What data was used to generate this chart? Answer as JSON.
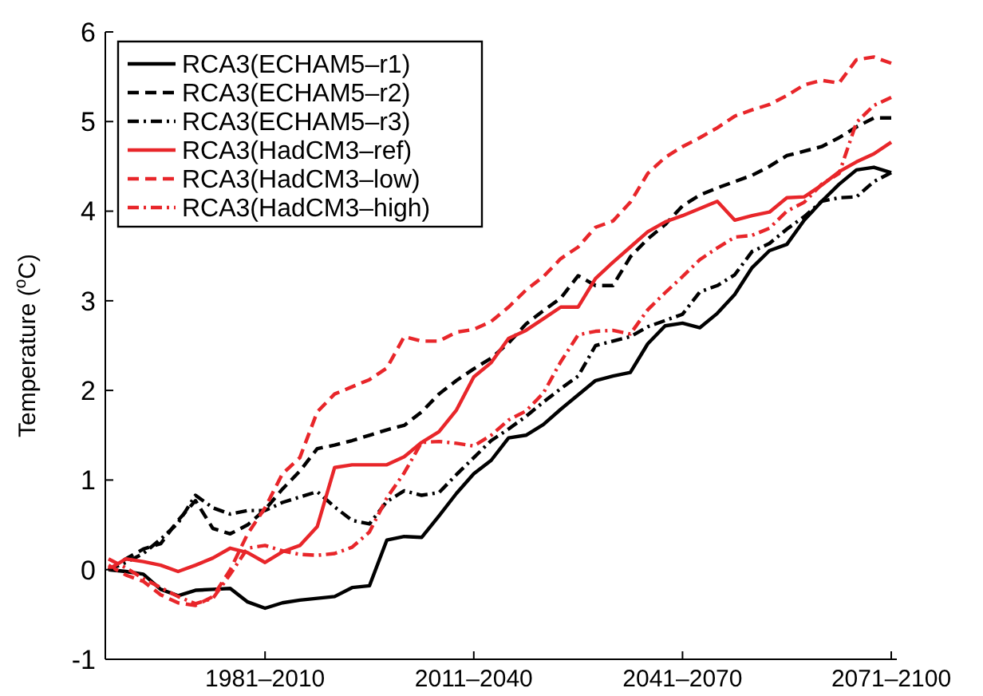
{
  "chart_data": {
    "type": "line",
    "ylabel": "Temperature ($^{o}$C)",
    "categories": [
      null,
      null,
      null,
      null,
      null,
      null,
      null,
      null,
      null,
      "1981–2010",
      null,
      null,
      null,
      null,
      null,
      null,
      null,
      null,
      null,
      null,
      null,
      "2011–2040",
      null,
      null,
      null,
      null,
      null,
      null,
      null,
      null,
      null,
      null,
      null,
      "2041–2070",
      null,
      null,
      null,
      null,
      null,
      null,
      null,
      null,
      null,
      null,
      null,
      "2071–2100"
    ],
    "ylim": [
      -1,
      6
    ],
    "yticks": [
      -1,
      0,
      1,
      2,
      3,
      4,
      5,
      6
    ],
    "legend": "top left",
    "series": [
      {
        "name": "RCA3(ECHAM5–r1)",
        "color": "#000000",
        "line_style": "solid",
        "values": [
          0,
          -0.02,
          -0.05,
          -0.22,
          -0.29,
          -0.23,
          -0.22,
          -0.21,
          -0.36,
          -0.43,
          -0.37,
          -0.34,
          -0.32,
          -0.3,
          -0.2,
          -0.18,
          0.33,
          0.37,
          0.36,
          0.6,
          0.85,
          1.07,
          1.22,
          1.47,
          1.5,
          1.62,
          1.79,
          1.95,
          2.11,
          2.16,
          2.2,
          2.52,
          2.72,
          2.75,
          2.7,
          2.86,
          3.07,
          3.37,
          3.56,
          3.63,
          3.9,
          4.11,
          4.3,
          4.46,
          4.49,
          4.43
        ]
      },
      {
        "name": "RCA3(ECHAM5–r2)",
        "color": "#000000",
        "line_style": "dashed",
        "values": [
          0,
          0.12,
          0.23,
          0.29,
          0.55,
          0.77,
          0.46,
          0.4,
          0.5,
          0.67,
          0.9,
          1.1,
          1.35,
          1.39,
          1.44,
          1.5,
          1.56,
          1.61,
          1.76,
          1.96,
          2.11,
          2.24,
          2.36,
          2.53,
          2.74,
          2.89,
          3.03,
          3.28,
          3.17,
          3.17,
          3.49,
          3.69,
          3.85,
          4.06,
          4.18,
          4.26,
          4.33,
          4.4,
          4.5,
          4.62,
          4.67,
          4.72,
          4.82,
          4.94,
          5.04,
          5.04
        ]
      },
      {
        "name": "RCA3(ECHAM5–r3)",
        "color": "#000000",
        "line_style": "dashdot",
        "values": [
          0,
          0.08,
          0.18,
          0.34,
          0.52,
          0.83,
          0.69,
          0.62,
          0.66,
          0.66,
          0.75,
          0.81,
          0.87,
          0.7,
          0.55,
          0.51,
          0.76,
          0.88,
          0.83,
          0.86,
          1.06,
          1.25,
          1.44,
          1.57,
          1.71,
          1.87,
          2.02,
          2.16,
          2.5,
          2.55,
          2.6,
          2.71,
          2.78,
          2.85,
          3.1,
          3.17,
          3.29,
          3.55,
          3.64,
          3.8,
          3.94,
          4.11,
          4.15,
          4.16,
          4.33,
          4.43
        ]
      },
      {
        "name": "RCA3(HadCM3–ref)",
        "color": "#e8262a",
        "line_style": "solid",
        "values": [
          0,
          0.12,
          0.09,
          0.05,
          -0.02,
          0.05,
          0.13,
          0.24,
          0.19,
          0.08,
          0.2,
          0.27,
          0.48,
          1.14,
          1.17,
          1.17,
          1.17,
          1.26,
          1.42,
          1.54,
          1.78,
          2.15,
          2.31,
          2.58,
          2.67,
          2.8,
          2.93,
          2.93,
          3.25,
          3.43,
          3.6,
          3.77,
          3.88,
          3.95,
          4.03,
          4.11,
          3.9,
          3.95,
          3.99,
          4.15,
          4.16,
          4.29,
          4.44,
          4.55,
          4.64,
          4.77
        ]
      },
      {
        "name": "RCA3(HadCM3–low)",
        "color": "#e8262a",
        "line_style": "dashed",
        "values": [
          0.05,
          -0.06,
          -0.13,
          -0.28,
          -0.37,
          -0.4,
          -0.3,
          0,
          0.4,
          0.69,
          1.07,
          1.25,
          1.76,
          1.96,
          2.04,
          2.12,
          2.25,
          2.6,
          2.55,
          2.55,
          2.65,
          2.68,
          2.77,
          2.93,
          3.12,
          3.27,
          3.47,
          3.6,
          3.82,
          3.89,
          4.1,
          4.42,
          4.6,
          4.72,
          4.82,
          4.93,
          5.06,
          5.13,
          5.19,
          5.29,
          5.41,
          5.46,
          5.43,
          5.69,
          5.72,
          5.65
        ]
      },
      {
        "name": "RCA3(HadCM3–high)",
        "color": "#e8262a",
        "line_style": "dashdot",
        "values": [
          0.12,
          0.02,
          -0.1,
          -0.2,
          -0.3,
          -0.38,
          -0.32,
          -0.05,
          0.24,
          0.27,
          0.21,
          0.17,
          0.16,
          0.18,
          0.25,
          0.42,
          0.8,
          1.08,
          1.42,
          1.43,
          1.41,
          1.38,
          1.5,
          1.67,
          1.77,
          1.97,
          2.32,
          2.62,
          2.66,
          2.67,
          2.63,
          2.9,
          3.09,
          3.27,
          3.46,
          3.59,
          3.71,
          3.73,
          3.81,
          4.0,
          4.1,
          4.3,
          4.42,
          4.99,
          5.18,
          5.27
        ]
      }
    ]
  }
}
